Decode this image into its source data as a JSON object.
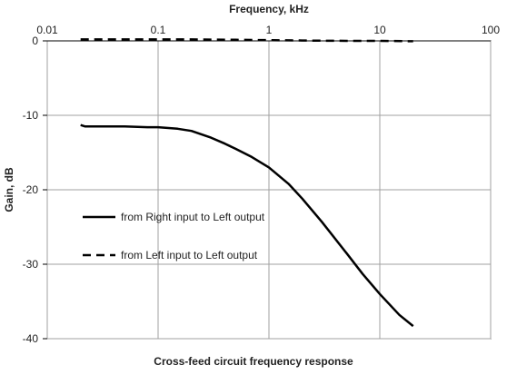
{
  "chart_data": {
    "type": "line",
    "title": "Cross-feed circuit frequency response",
    "xlabel": "Frequency, kHz",
    "ylabel": "Gain, dB",
    "xscale": "log",
    "xlim": [
      0.01,
      100
    ],
    "ylim": [
      -40,
      0
    ],
    "x_axis_position": "top",
    "xticks": [
      0.01,
      0.1,
      1,
      10,
      100
    ],
    "xtick_labels": [
      "0.01",
      "0.1",
      "1",
      "10",
      "100"
    ],
    "yticks": [
      0,
      -10,
      -20,
      -30,
      -40
    ],
    "ytick_labels": [
      "0",
      "-10",
      "-20",
      "-30",
      "-40"
    ],
    "grid": true,
    "legend_position": "left-center",
    "series": [
      {
        "name": "from Right input to Left output",
        "style": "solid",
        "color": "#000000",
        "x": [
          0.02,
          0.022,
          0.03,
          0.05,
          0.08,
          0.1,
          0.15,
          0.2,
          0.3,
          0.4,
          0.5,
          0.7,
          1,
          1.5,
          2,
          3,
          5,
          7,
          10,
          15,
          20
        ],
        "y": [
          -11.3,
          -11.5,
          -11.5,
          -11.5,
          -11.6,
          -11.6,
          -11.8,
          -12.1,
          -13.0,
          -13.8,
          -14.5,
          -15.6,
          -17.0,
          -19.2,
          -21.2,
          -24.3,
          -28.5,
          -31.3,
          -34.0,
          -36.8,
          -38.3
        ]
      },
      {
        "name": "from Left input to Left output",
        "style": "dashed",
        "color": "#000000",
        "x": [
          0.02,
          0.03,
          0.05,
          0.1,
          0.2,
          0.5,
          1,
          2,
          5,
          10,
          20
        ],
        "y": [
          0.2,
          0.2,
          0.2,
          0.2,
          0.2,
          0.15,
          0.1,
          0.05,
          0.0,
          0.0,
          -0.05
        ]
      }
    ]
  }
}
